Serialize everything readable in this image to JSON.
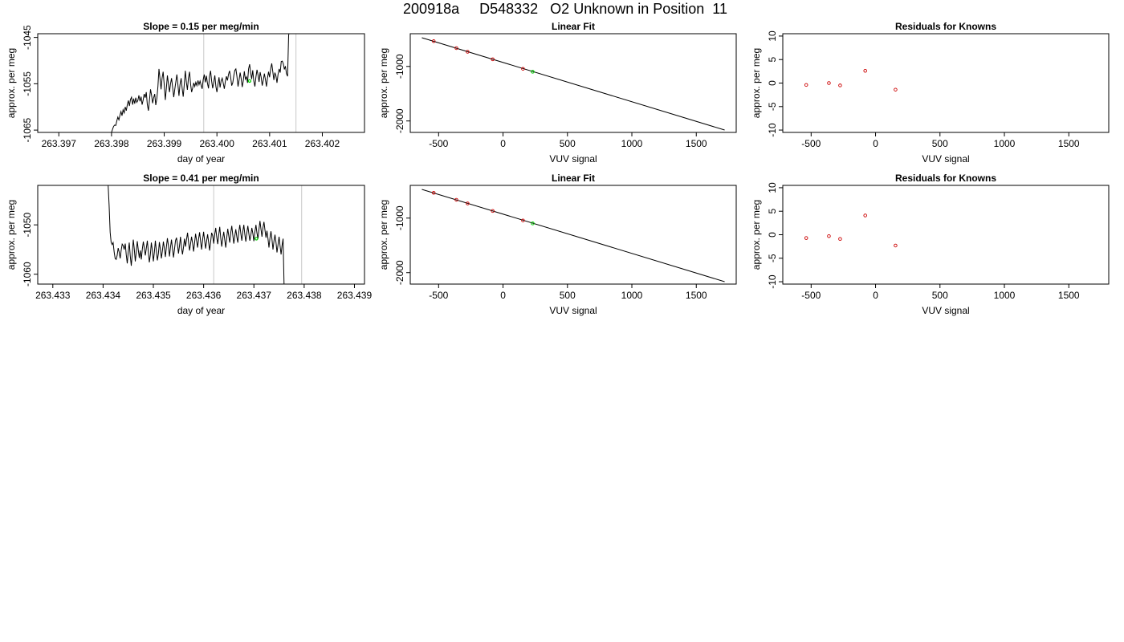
{
  "page_title": "200918a     D548332   O2 Unknown in Position  11",
  "chart_data": [
    {
      "type": "line",
      "title": "Slope =  0.15  per meg/min",
      "xlabel": "day of year",
      "ylabel": "approx. per meg",
      "xlim": [
        263.3966,
        263.4028
      ],
      "ylim": [
        -1065.5,
        -1044.2
      ],
      "xticks": [
        "263.397",
        "263.398",
        "263.399",
        "263.400",
        "263.401",
        "263.402"
      ],
      "xtick_values": [
        263.397,
        263.398,
        263.399,
        263.4,
        263.401,
        263.402
      ],
      "yticks": [
        "-1045",
        "-1055",
        "-1065"
      ],
      "ytick_values": [
        -1045,
        -1055,
        -1065
      ],
      "vlines": [
        263.39975,
        263.4015
      ],
      "highlight_point": {
        "x": 263.40062,
        "y": -1054.4,
        "color": "#00cc00"
      },
      "series": [
        {
          "color": "#000000",
          "x_start": 263.398,
          "x_step": 2e-05,
          "values": [
            -1065.5,
            -1064.8,
            -1064.2,
            -1063.9,
            -1064.0,
            -1063.0,
            -1062.2,
            -1062.8,
            -1061.8,
            -1061.0,
            -1061.9,
            -1060.6,
            -1061.3,
            -1060.0,
            -1060.8,
            -1059.5,
            -1058.6,
            -1059.8,
            -1058.4,
            -1057.9,
            -1059.5,
            -1058.2,
            -1059.3,
            -1058.0,
            -1059.0,
            -1058.6,
            -1057.5,
            -1058.8,
            -1057.8,
            -1059.5,
            -1058.5,
            -1057.2,
            -1058.0,
            -1056.8,
            -1059.5,
            -1060.8,
            -1058.5,
            -1056.2,
            -1057.5,
            -1059.2,
            -1058.0,
            -1057.2,
            -1059.6,
            -1058.1,
            -1055.6,
            -1051.8,
            -1053.9,
            -1056.2,
            -1053.8,
            -1052.4,
            -1055.1,
            -1058.5,
            -1056.0,
            -1053.2,
            -1055.0,
            -1056.8,
            -1055.0,
            -1053.8,
            -1055.9,
            -1057.9,
            -1056.2,
            -1054.6,
            -1053.0,
            -1055.2,
            -1057.6,
            -1055.2,
            -1053.8,
            -1056.0,
            -1057.8,
            -1055.2,
            -1052.2,
            -1054.6,
            -1056.3,
            -1053.8,
            -1052.4,
            -1055.1,
            -1056.8,
            -1055.9,
            -1054.8,
            -1055.6,
            -1054.7,
            -1055.4,
            -1054.3,
            -1055.2,
            -1054.4,
            -1055.3,
            -1056.1,
            -1054.1,
            -1053.0,
            -1054.7,
            -1053.3,
            -1054.9,
            -1056.0,
            -1053.4,
            -1052.2,
            -1054.4,
            -1056.0,
            -1054.6,
            -1053.2,
            -1055.6,
            -1056.8,
            -1055.1,
            -1053.6,
            -1055.8,
            -1054.4,
            -1053.8,
            -1054.9,
            -1056.1,
            -1054.5,
            -1053.4,
            -1054.3,
            -1053.0,
            -1052.2,
            -1053.6,
            -1055.4,
            -1054.8,
            -1053.3,
            -1052.1,
            -1051.8,
            -1053.4,
            -1055.6,
            -1054.2,
            -1052.6,
            -1053.9,
            -1055.7,
            -1054.4,
            -1052.3,
            -1054.0,
            -1053.5,
            -1054.8,
            -1051.8,
            -1050.8,
            -1052.6,
            -1054.0,
            -1052.1,
            -1054.4,
            -1055.6,
            -1053.5,
            -1052.0,
            -1053.1,
            -1054.6,
            -1052.5,
            -1053.6,
            -1055.4,
            -1054.2,
            -1052.8,
            -1054.1,
            -1055.6,
            -1053.7,
            -1052.4,
            -1053.6,
            -1051.7,
            -1050.6,
            -1052.4,
            -1054.2,
            -1052.6,
            -1053.3,
            -1054.8,
            -1053.0,
            -1051.8,
            -1052.6,
            -1050.2,
            -1050.1,
            -1050.7,
            -1051.9,
            -1051.2,
            -1052.8,
            -1053.4,
            -1044.6,
            -1043.0
          ]
        }
      ]
    },
    {
      "type": "scatter",
      "title": "Linear Fit",
      "xlabel": "VUV signal",
      "ylabel": "approx. per meg",
      "xlim": [
        -720,
        1810
      ],
      "ylim": [
        -2210,
        -400
      ],
      "xticks": [
        "-500",
        "0",
        "500",
        "1000",
        "1500"
      ],
      "xtick_values": [
        -500,
        0,
        500,
        1000,
        1500
      ],
      "yticks": [
        "-1000",
        "-2000"
      ],
      "ytick_values": [
        -1000,
        -2000
      ],
      "line": {
        "x": [
          -630,
          1720
        ],
        "y": [
          -473,
          -2166
        ]
      },
      "points": [
        {
          "x": -538,
          "y": -537,
          "color": "#cc0000"
        },
        {
          "x": -362,
          "y": -664,
          "color": "#cc0000"
        },
        {
          "x": -275,
          "y": -731,
          "color": "#cc0000"
        },
        {
          "x": -80,
          "y": -869,
          "color": "#cc0000"
        },
        {
          "x": 155,
          "y": -1043,
          "color": "#cc0000"
        }
      ],
      "unknown_point": {
        "x": 230,
        "y": -1097,
        "color": "#00cc00"
      }
    },
    {
      "type": "scatter",
      "title": "Residuals for Knowns",
      "xlabel": "VUV signal",
      "ylabel": "approx. per meg",
      "xlim": [
        -720,
        1810
      ],
      "ylim": [
        -10.5,
        10.5
      ],
      "xticks": [
        "-500",
        "0",
        "500",
        "1000",
        "1500"
      ],
      "xtick_values": [
        -500,
        0,
        500,
        1000,
        1500
      ],
      "yticks": [
        "10",
        "5",
        "0",
        "-5",
        "-10"
      ],
      "ytick_values": [
        10,
        5,
        0,
        -5,
        -10
      ],
      "points": [
        {
          "x": -538,
          "y": -0.4,
          "color": "#cc0000"
        },
        {
          "x": -362,
          "y": 0.0,
          "color": "#cc0000"
        },
        {
          "x": -275,
          "y": -0.5,
          "color": "#cc0000"
        },
        {
          "x": -80,
          "y": 2.6,
          "color": "#cc0000"
        },
        {
          "x": 155,
          "y": -1.4,
          "color": "#cc0000"
        }
      ]
    },
    {
      "type": "line",
      "title": "Slope =  0.41  per meg/min",
      "xlabel": "day of year",
      "ylabel": "approx. per meg",
      "xlim": [
        263.4327,
        263.4392
      ],
      "ylim": [
        -1062.0,
        -1042.0
      ],
      "xticks": [
        "263.433",
        "263.434",
        "263.435",
        "263.436",
        "263.437",
        "263.438",
        "263.439"
      ],
      "xtick_values": [
        263.433,
        263.434,
        263.435,
        263.436,
        263.437,
        263.438,
        263.439
      ],
      "yticks": [
        "-1050",
        "-1060"
      ],
      "ytick_values": [
        -1050,
        -1060
      ],
      "vlines": [
        263.4362,
        263.43795
      ],
      "highlight_point": {
        "x": 263.43705,
        "y": -1052.8,
        "color": "#00cc00"
      },
      "series": [
        {
          "color": "#000000",
          "x_start": 263.4341,
          "x_step": 2e-05,
          "values": [
            -1042.0,
            -1046.0,
            -1051.5,
            -1053.5,
            -1054.0,
            -1053.6,
            -1055.5,
            -1056.8,
            -1057.0,
            -1056.2,
            -1054.7,
            -1055.5,
            -1056.8,
            -1055.2,
            -1053.9,
            -1054.2,
            -1055.0,
            -1053.8,
            -1056.0,
            -1057.8,
            -1055.5,
            -1053.6,
            -1056.2,
            -1058.3,
            -1056.0,
            -1053.0,
            -1054.8,
            -1057.4,
            -1055.6,
            -1053.3,
            -1055.0,
            -1056.7,
            -1055.2,
            -1057.0,
            -1055.0,
            -1053.4,
            -1054.6,
            -1056.2,
            -1054.8,
            -1053.2,
            -1055.5,
            -1057.6,
            -1056.0,
            -1053.6,
            -1055.2,
            -1057.4,
            -1055.5,
            -1053.2,
            -1055.3,
            -1057.2,
            -1055.8,
            -1053.5,
            -1055.0,
            -1056.8,
            -1055.2,
            -1053.4,
            -1054.8,
            -1056.5,
            -1054.4,
            -1052.7,
            -1054.2,
            -1056.4,
            -1054.6,
            -1053.0,
            -1054.8,
            -1056.6,
            -1055.0,
            -1053.2,
            -1052.6,
            -1054.0,
            -1055.8,
            -1054.2,
            -1052.4,
            -1054.6,
            -1056.0,
            -1054.5,
            -1052.8,
            -1054.4,
            -1053.0,
            -1051.6,
            -1053.4,
            -1055.2,
            -1053.8,
            -1052.4,
            -1053.7,
            -1055.4,
            -1053.6,
            -1051.8,
            -1053.2,
            -1054.6,
            -1052.8,
            -1051.5,
            -1053.4,
            -1055.0,
            -1053.0,
            -1051.4,
            -1053.2,
            -1054.8,
            -1053.2,
            -1051.9,
            -1053.6,
            -1055.2,
            -1053.4,
            -1051.6,
            -1052.2,
            -1053.8,
            -1052.0,
            -1050.6,
            -1052.4,
            -1053.9,
            -1052.1,
            -1050.4,
            -1052.6,
            -1054.4,
            -1052.8,
            -1051.4,
            -1053.0,
            -1054.6,
            -1052.6,
            -1050.8,
            -1052.2,
            -1053.6,
            -1051.6,
            -1050.2,
            -1052.0,
            -1053.8,
            -1052.2,
            -1050.9,
            -1052.4,
            -1053.6,
            -1051.4,
            -1050.0,
            -1051.8,
            -1053.2,
            -1051.3,
            -1050.0,
            -1052.0,
            -1053.4,
            -1051.6,
            -1050.2,
            -1051.8,
            -1053.2,
            -1052.0,
            -1050.6,
            -1051.8,
            -1053.3,
            -1051.4,
            -1050.0,
            -1051.6,
            -1052.8,
            -1051.0,
            -1049.2,
            -1050.8,
            -1052.4,
            -1050.6,
            -1049.4,
            -1051.0,
            -1052.6,
            -1051.2,
            -1052.8,
            -1054.6,
            -1052.6,
            -1051.3,
            -1053.0,
            -1055.0,
            -1053.2,
            -1052.0,
            -1053.6,
            -1055.6,
            -1054.0,
            -1052.4,
            -1054.2,
            -1056.0,
            -1054.2,
            -1052.8,
            -1062.0
          ]
        }
      ]
    },
    {
      "type": "scatter",
      "title": "Linear Fit",
      "xlabel": "VUV signal",
      "ylabel": "approx. per meg",
      "xlim": [
        -720,
        1810
      ],
      "ylim": [
        -2210,
        -400
      ],
      "xticks": [
        "-500",
        "0",
        "500",
        "1000",
        "1500"
      ],
      "xtick_values": [
        -500,
        0,
        500,
        1000,
        1500
      ],
      "yticks": [
        "-1000",
        "-2000"
      ],
      "ytick_values": [
        -1000,
        -2000
      ],
      "line": {
        "x": [
          -630,
          1720
        ],
        "y": [
          -473,
          -2166
        ]
      },
      "points": [
        {
          "x": -538,
          "y": -537,
          "color": "#cc0000"
        },
        {
          "x": -362,
          "y": -664,
          "color": "#cc0000"
        },
        {
          "x": -275,
          "y": -731,
          "color": "#cc0000"
        },
        {
          "x": -80,
          "y": -869,
          "color": "#cc0000"
        },
        {
          "x": 155,
          "y": -1043,
          "color": "#cc0000"
        }
      ],
      "unknown_point": {
        "x": 230,
        "y": -1097,
        "color": "#00cc00"
      }
    },
    {
      "type": "scatter",
      "title": "Residuals for Knowns",
      "xlabel": "VUV signal",
      "ylabel": "approx. per meg",
      "xlim": [
        -720,
        1810
      ],
      "ylim": [
        -10.5,
        10.5
      ],
      "xticks": [
        "-500",
        "0",
        "500",
        "1000",
        "1500"
      ],
      "xtick_values": [
        -500,
        0,
        500,
        1000,
        1500
      ],
      "yticks": [
        "10",
        "5",
        "0",
        "-5",
        "-10"
      ],
      "ytick_values": [
        10,
        5,
        0,
        -5,
        -10
      ],
      "points": [
        {
          "x": -538,
          "y": -0.7,
          "color": "#cc0000"
        },
        {
          "x": -362,
          "y": -0.3,
          "color": "#cc0000"
        },
        {
          "x": -275,
          "y": -0.9,
          "color": "#cc0000"
        },
        {
          "x": -80,
          "y": 4.1,
          "color": "#cc0000"
        },
        {
          "x": 155,
          "y": -2.3,
          "color": "#cc0000"
        }
      ]
    }
  ]
}
